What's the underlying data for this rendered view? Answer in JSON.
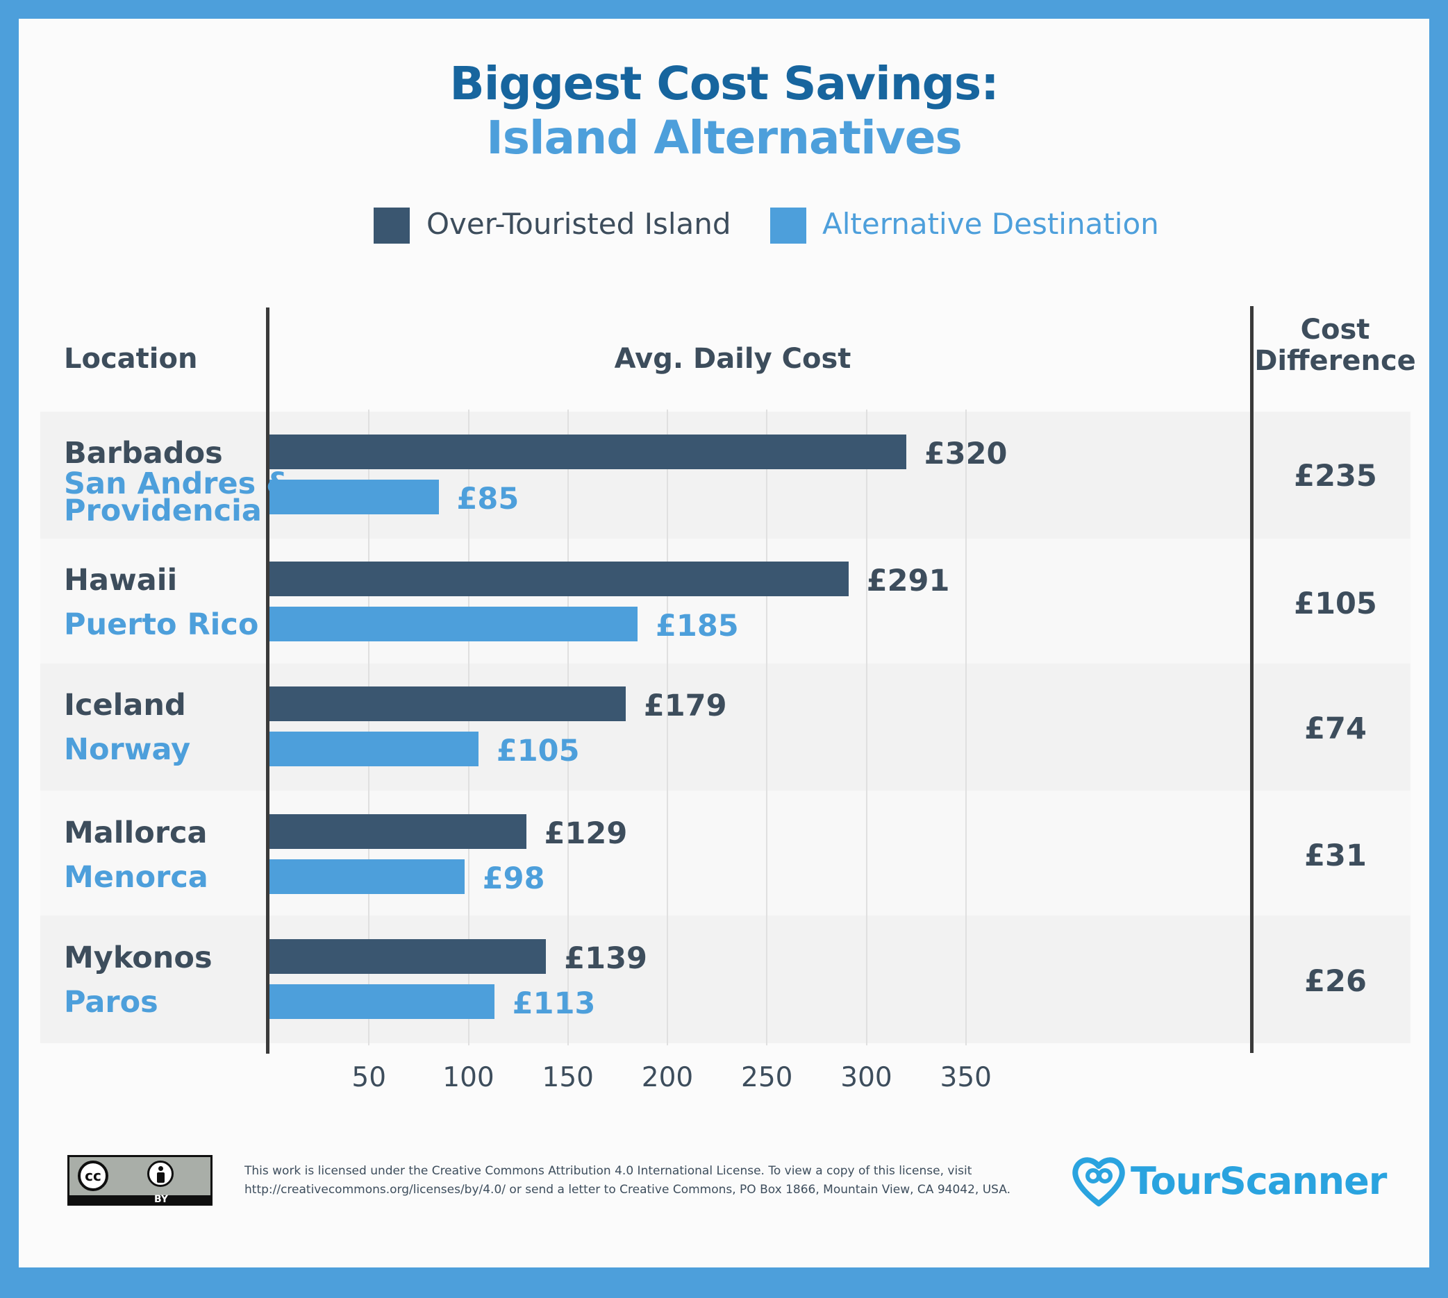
{
  "title": "Biggest Cost Savings:",
  "subtitle": "Island Alternatives",
  "legend": [
    {
      "label": "Over-Touristed Island",
      "color": "#3a5670"
    },
    {
      "label": "Alternative Destination",
      "color": "#4d9fdb"
    }
  ],
  "headers": {
    "location": "Location",
    "cost": "Avg. Daily Cost",
    "diff_line1": "Cost",
    "diff_line2": "Difference"
  },
  "chart_data": {
    "type": "bar",
    "orientation": "horizontal",
    "categories": [
      "Barbados / San Andres & Providencia",
      "Hawaii / Puerto Rico",
      "Iceland / Norway",
      "Mallorca / Menorca",
      "Mykonos / Paros"
    ],
    "series": [
      {
        "name": "Over-Touristed Island",
        "values": [
          320,
          291,
          179,
          129,
          139
        ]
      },
      {
        "name": "Alternative Destination",
        "values": [
          85,
          185,
          105,
          98,
          113
        ]
      }
    ],
    "xlabel": "Avg. Daily Cost",
    "xticks": [
      "50",
      "100",
      "150",
      "200",
      "250",
      "300",
      "350"
    ],
    "grid": true,
    "legend_position": "top"
  },
  "rows": [
    {
      "island": "Barbados",
      "alt_line1": "San Andres &",
      "alt_line2": "Providencia",
      "island_label": "£320",
      "alt_label": "£85",
      "diff": "£235"
    },
    {
      "island": "Hawaii",
      "alt_line1": "Puerto Rico",
      "alt_line2": "",
      "island_label": "£291",
      "alt_label": "£185",
      "diff": "£105"
    },
    {
      "island": "Iceland",
      "alt_line1": "Norway",
      "alt_line2": "",
      "island_label": "£179",
      "alt_label": "£105",
      "diff": "£74"
    },
    {
      "island": "Mallorca",
      "alt_line1": "Menorca",
      "alt_line2": "",
      "island_label": "£129",
      "alt_label": "£98",
      "diff": "£31"
    },
    {
      "island": "Mykonos",
      "alt_line1": "Paros",
      "alt_line2": "",
      "island_label": "£139",
      "alt_label": "£113",
      "diff": "£26"
    }
  ],
  "footer": {
    "license_line1": "This work is licensed under the Creative Commons Attribution 4.0 International License. To view a copy of this license, visit",
    "license_line2": "http://creativecommons.org/licenses/by/4.0/ or send a letter to Creative Commons, PO Box 1866, Mountain View, CA 94042, USA.",
    "cc_badge": "BY",
    "cc_text": "cc",
    "brand": "TourScanner"
  }
}
